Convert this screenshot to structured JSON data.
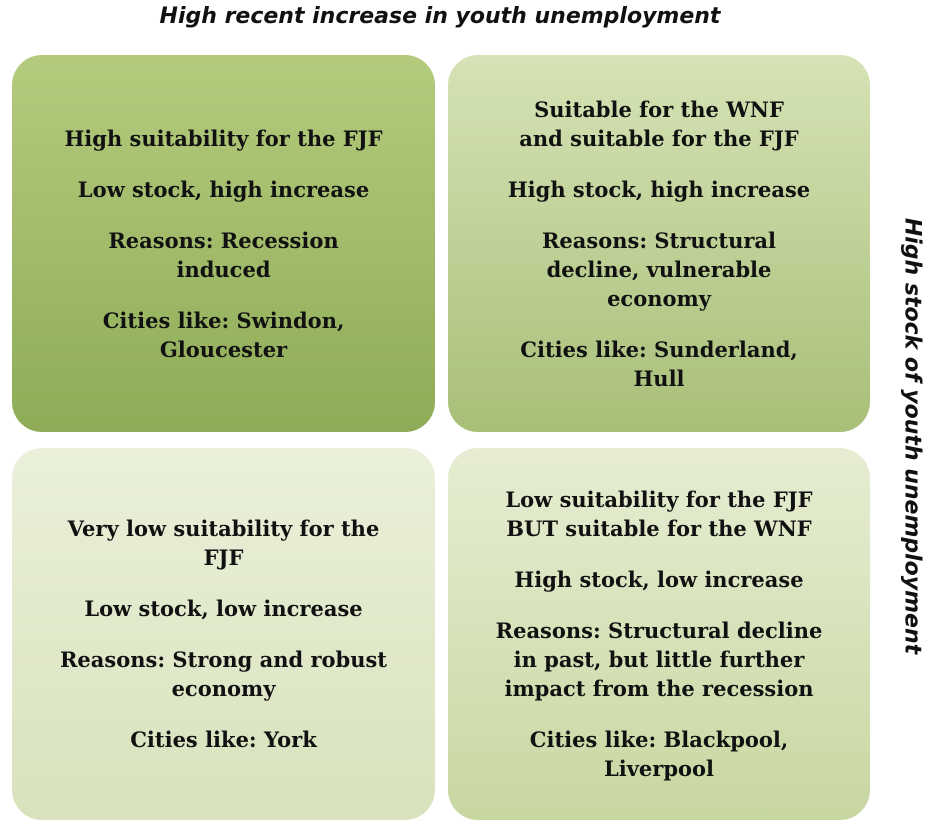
{
  "top_label": "High recent increase in youth unemployment",
  "side_label": "High stock of youth unemployment",
  "quadrants": [
    {
      "paragraphs": [
        [
          "High suitability for the FJF"
        ],
        [
          "Low stock, high increase"
        ],
        [
          "Reasons: Recession",
          "induced"
        ],
        [
          "Cities like: Swindon,",
          "Gloucester"
        ]
      ]
    },
    {
      "paragraphs": [
        [
          "Suitable for the WNF",
          "and suitable for the FJF"
        ],
        [
          "High stock, high increase"
        ],
        [
          "Reasons: Structural",
          "decline, vulnerable",
          "economy"
        ],
        [
          "Cities like: Sunderland,",
          "Hull"
        ]
      ]
    },
    {
      "paragraphs": [
        [
          "Very low suitability for the",
          "FJF"
        ],
        [
          "Low stock, low increase"
        ],
        [
          "Reasons: Strong and robust",
          "economy"
        ],
        [
          "Cities like: York"
        ]
      ]
    },
    {
      "paragraphs": [
        [
          "Low suitability for the FJF",
          "BUT suitable for the WNF"
        ],
        [
          "High stock, low increase"
        ],
        [
          "Reasons: Structural decline",
          "in past, but little further",
          "impact from the recession"
        ],
        [
          "Cities like: Blackpool,",
          "Liverpool"
        ]
      ]
    }
  ]
}
